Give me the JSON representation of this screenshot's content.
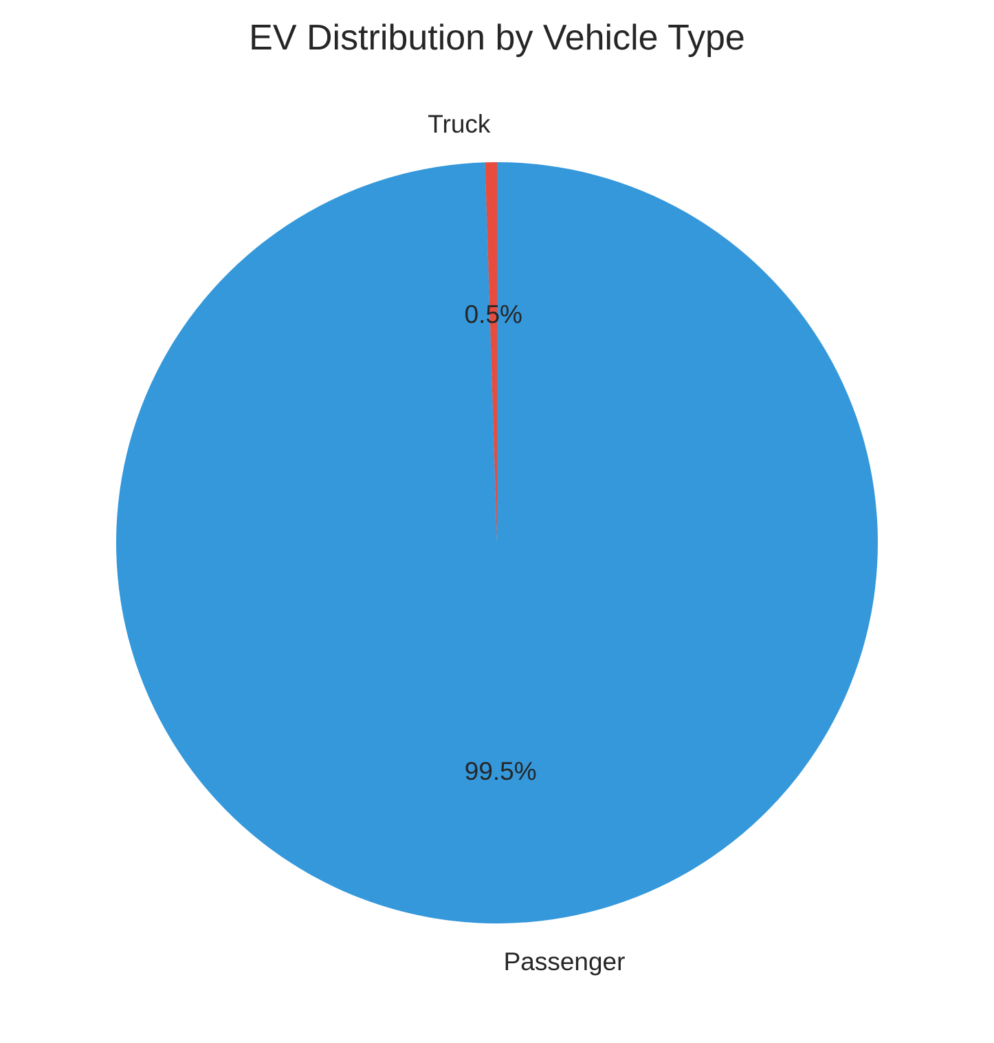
{
  "chart_data": {
    "type": "pie",
    "title": "EV Distribution by Vehicle Type",
    "categories": [
      "Truck",
      "Passenger"
    ],
    "values": [
      0.5,
      99.5
    ],
    "value_labels": [
      "0.5%",
      "99.5%"
    ],
    "colors": [
      "#e74c3c",
      "#3498db"
    ],
    "start_angle_deg": 90,
    "direction": "counterclockwise",
    "legend": "none"
  }
}
